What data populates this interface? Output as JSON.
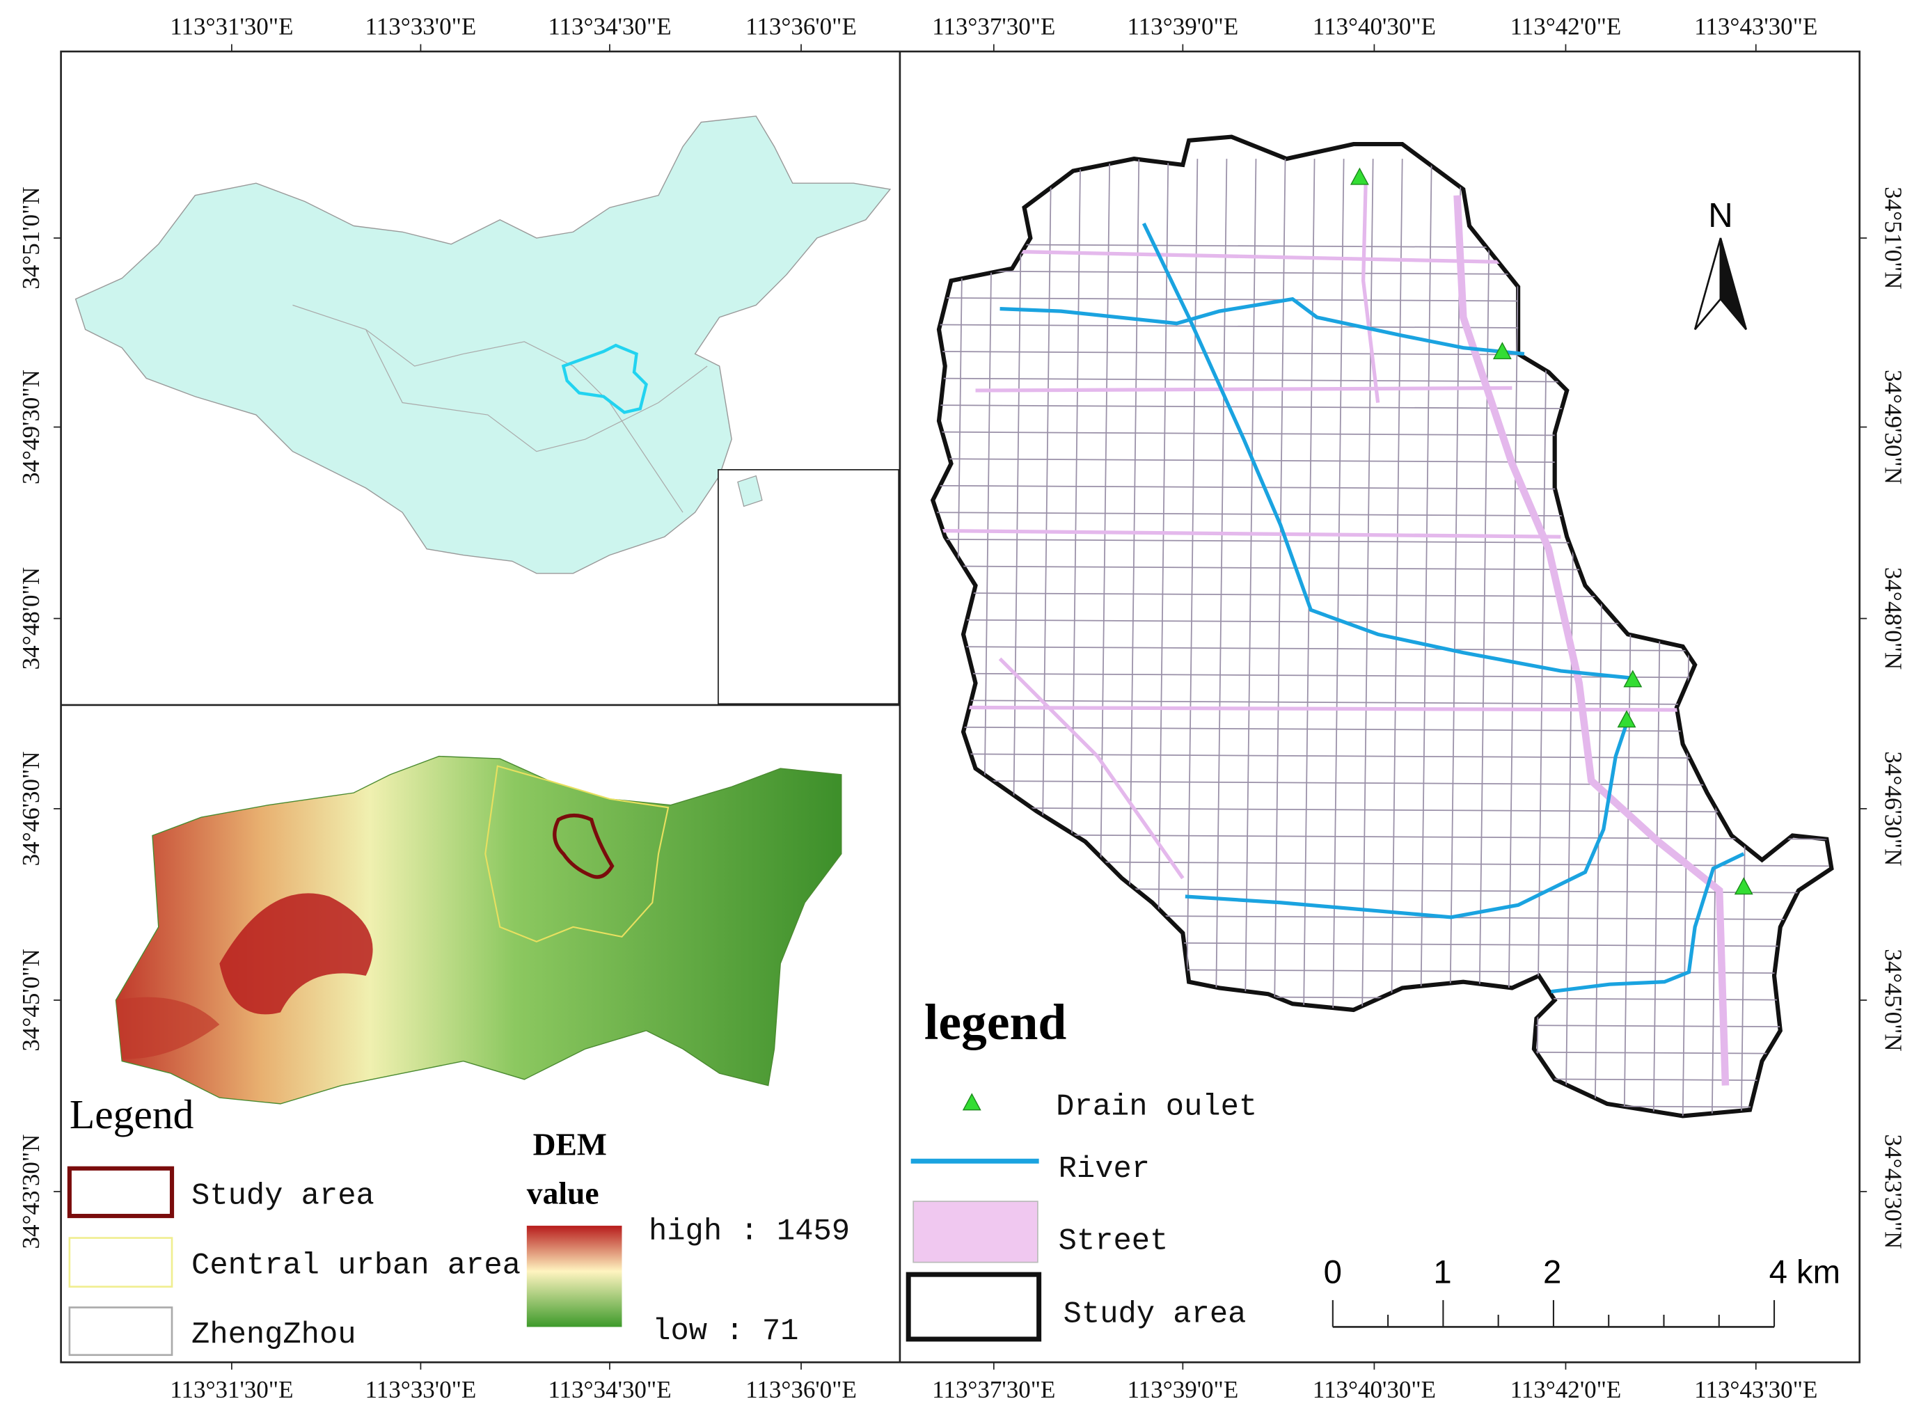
{
  "frame": {
    "top_labels": [
      "113°31'30\"E",
      "113°33'0\"E",
      "113°34'30\"E",
      "113°36'0\"E",
      "113°37'30\"E",
      "113°39'0\"E",
      "113°40'30\"E",
      "113°42'0\"E",
      "113°43'30\"E"
    ],
    "bottom_labels": [
      "113°31'30\"E",
      "113°33'0\"E",
      "113°34'30\"E",
      "113°36'0\"E",
      "113°37'30\"E",
      "113°39'0\"E",
      "113°40'30\"E",
      "113°42'0\"E",
      "113°43'30\"E"
    ],
    "left_labels": [
      "34°51'0\"N",
      "34°49'30\"N",
      "34°48'0\"N",
      "34°46'30\"N",
      "34°45'0\"N",
      "34°43'30\"N"
    ],
    "right_labels": [
      "34°51'0\"N",
      "34°49'30\"N",
      "34°48'0\"N",
      "34°46'30\"N",
      "34°45'0\"N",
      "34°43'30\"N"
    ]
  },
  "legend_left": {
    "title": "Legend",
    "items": [
      "Study area",
      "Central urban area",
      "ZhengZhou"
    ],
    "dem_title": "DEM",
    "dem_subtitle": "value",
    "high": "high : 1459",
    "low": "low : 71"
  },
  "legend_right": {
    "title": "legend",
    "items": [
      "Drain oulet",
      "River",
      "Street",
      "Study area"
    ]
  },
  "north": "N",
  "scale_bar": {
    "labels": [
      "0",
      "1",
      "2",
      "4 km"
    ]
  }
}
